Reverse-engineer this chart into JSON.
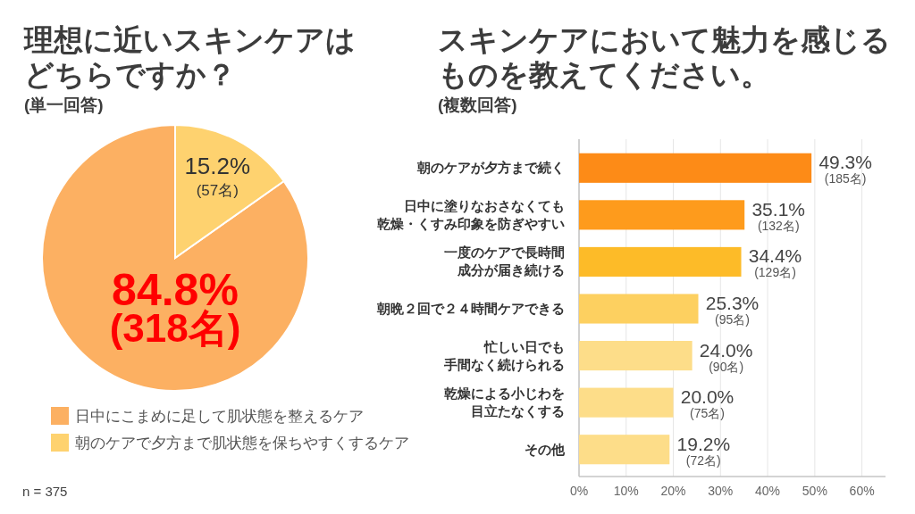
{
  "chart_data": [
    {
      "type": "pie",
      "title": "理想に近いスキンケアはどちらですか？",
      "subtitle": "(単一回答)",
      "categories": [
        "日中にこまめに足して肌状態を整えるケア",
        "朝のケアで夕方まで肌状態を保ちやすくするケア"
      ],
      "values": [
        84.8,
        15.2
      ],
      "colors": [
        "#fcb062",
        "#fed26f"
      ],
      "value_labels": [
        "84.8%\n(318名)",
        "15.2%\n(57名)"
      ],
      "legend": "bottom",
      "annotations": [
        "n = 375"
      ]
    },
    {
      "type": "bar",
      "orientation": "horizontal",
      "title": "スキンケアにおいて魅力を感じるものを教えてください。",
      "subtitle": "(複数回答)",
      "categories": [
        "朝のケアが夕方まで続く",
        "日中に塗りなおさなくても乾燥・くすみ印象を防ぎやすい",
        "一度のケアで長時間成分が届き続ける",
        "朝晩２回で２４時間ケアできる",
        "忙しい日でも手間なく続けられる",
        "乾燥による小じわを目立たなくする",
        "その他"
      ],
      "values": [
        49.3,
        35.1,
        34.4,
        25.3,
        24.0,
        20.0,
        19.2
      ],
      "colors": [
        "#fd8b17",
        "#fe9b1c",
        "#fdbb28",
        "#fdd060",
        "#fddd89",
        "#fddd89",
        "#fddd89"
      ],
      "value_labels": [
        "49.3%\n(185名)",
        "35.1%\n(132名)",
        "34.4%\n(129名)",
        "25.3%\n(95名)",
        "24.0%\n(90名)",
        "20.0%\n(75名)",
        "19.2%\n(72名)"
      ],
      "xlim": [
        0,
        65
      ],
      "xticks": [
        {
          "value": 0,
          "label": "0%"
        },
        {
          "value": 10,
          "label": "10%"
        },
        {
          "value": 20,
          "label": "20%"
        },
        {
          "value": 30,
          "label": "30%"
        },
        {
          "value": 40,
          "label": "40%"
        },
        {
          "value": 50,
          "label": "50%"
        },
        {
          "value": 60,
          "label": "60%"
        }
      ],
      "grid": "x"
    }
  ]
}
